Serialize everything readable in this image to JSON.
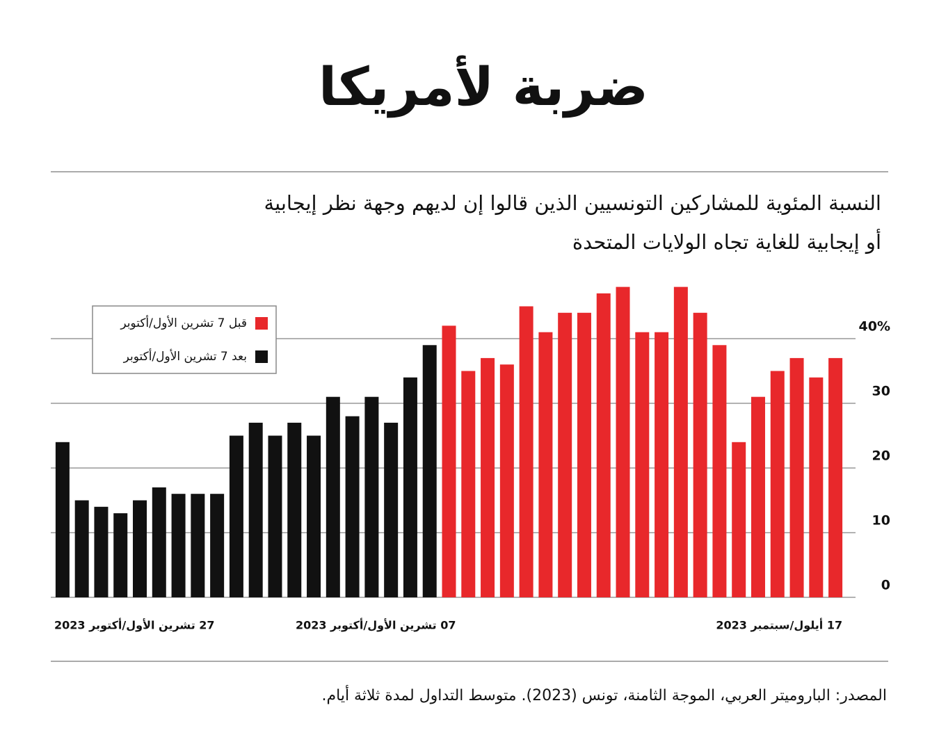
{
  "chart_data": {
    "type": "bar",
    "title": "ضربة لأمريكا",
    "subtitle": [
      "النسبة المئوية للمشاركين التونسيين الذين قالوا إن لديهم وجهة نظر إيجابية",
      "أو إيجابية للغاية تجاه الولايات المتحدة"
    ],
    "source": "المصدر: الباروميتر العربي، الموجة الثامنة، تونس (2023). متوسط التداول لمدة ثلاثة أيام.",
    "direction": "rtl",
    "categories": [
      "17 أيلول/سبتمبر 2023",
      null,
      null,
      null,
      null,
      null,
      null,
      null,
      null,
      null,
      null,
      null,
      null,
      null,
      null,
      null,
      null,
      null,
      null,
      null,
      "07  تشرين الأول/أكتوبر 2023",
      null,
      null,
      null,
      null,
      null,
      null,
      null,
      null,
      null,
      null,
      null,
      null,
      null,
      null,
      null,
      null,
      null,
      null,
      null,
      "27  تشرين الأول/أكتوبر 2023"
    ],
    "series": [
      {
        "name": "قبل 7 تشرين الأول/أكتوبر",
        "color": "#e8282b",
        "values": [
          37,
          34,
          37,
          35,
          31,
          24,
          39,
          44,
          48,
          41,
          41,
          48,
          47,
          44,
          44,
          41,
          45,
          36,
          37,
          35,
          42,
          null,
          null,
          null,
          null,
          null,
          null,
          null,
          null,
          null,
          null,
          null,
          null,
          null,
          null,
          null,
          null,
          null,
          null,
          null,
          null
        ]
      },
      {
        "name": "بعد 7 تشرين الأول/أكتوبر",
        "color": "#111111",
        "values": [
          null,
          null,
          null,
          null,
          null,
          null,
          null,
          null,
          null,
          null,
          null,
          null,
          null,
          null,
          null,
          null,
          null,
          null,
          null,
          null,
          null,
          39,
          34,
          27,
          31,
          28,
          31,
          25,
          27,
          25,
          27,
          25,
          16,
          16,
          16,
          17,
          15,
          13,
          14,
          15,
          24
        ]
      }
    ],
    "ylim": [
      0,
      50
    ],
    "yticks": [
      0,
      10,
      20,
      30,
      {
        "value": 40,
        "label": "40%"
      }
    ],
    "grid": true,
    "legend": "upper left"
  }
}
